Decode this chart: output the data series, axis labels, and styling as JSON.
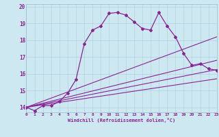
{
  "xlabel": "Windchill (Refroidissement éolien,°C)",
  "bg_color": "#cde8f0",
  "line_color": "#882299",
  "grid_color": "#aaccdd",
  "xmin": 0,
  "xmax": 23,
  "ymin": 13.7,
  "ymax": 20.15,
  "yticks": [
    14,
    15,
    16,
    17,
    18,
    19,
    20
  ],
  "xticks": [
    0,
    1,
    2,
    3,
    4,
    5,
    6,
    7,
    8,
    9,
    10,
    11,
    12,
    13,
    14,
    15,
    16,
    17,
    18,
    19,
    20,
    21,
    22,
    23
  ],
  "curve1_x": [
    0,
    1,
    2,
    3,
    4,
    5,
    6,
    7,
    8,
    9,
    10,
    11,
    12,
    13,
    14,
    15,
    16,
    17,
    18,
    19,
    20,
    21,
    22,
    23
  ],
  "curve1_y": [
    14.0,
    13.8,
    14.1,
    14.1,
    14.35,
    14.85,
    15.65,
    17.8,
    18.6,
    18.85,
    19.6,
    19.65,
    19.5,
    19.1,
    18.7,
    18.6,
    19.65,
    18.85,
    18.2,
    17.2,
    16.5,
    16.6,
    16.3,
    16.2
  ],
  "line1_x": [
    0,
    23
  ],
  "line1_y": [
    14.0,
    18.2
  ],
  "line2_x": [
    0,
    23
  ],
  "line2_y": [
    14.0,
    16.8
  ],
  "line3_x": [
    0,
    23
  ],
  "line3_y": [
    14.0,
    16.25
  ],
  "line4_x": [
    0,
    23
  ],
  "line4_y": [
    14.0,
    15.7
  ]
}
